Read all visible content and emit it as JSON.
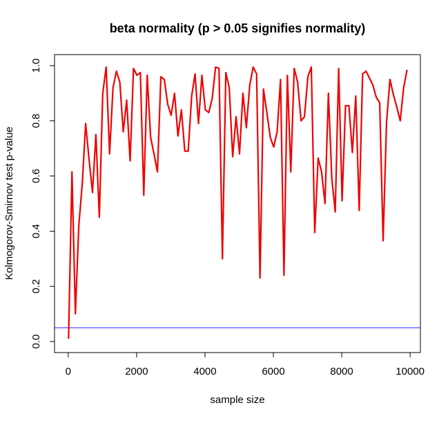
{
  "chart_data": {
    "type": "line",
    "title": "beta normality (p > 0.05 signifies normality)",
    "xlabel": "sample size",
    "ylabel": "Kolmogorov-Smirnov test p-value",
    "xlim": [
      -400,
      10300
    ],
    "ylim": [
      -0.04,
      1.04
    ],
    "xticks": [
      0,
      2000,
      4000,
      6000,
      8000,
      10000
    ],
    "yticks": [
      0.0,
      0.2,
      0.4,
      0.6,
      0.8,
      1.0
    ],
    "xtick_labels": [
      "0",
      "2000",
      "4000",
      "6000",
      "8000",
      "10000"
    ],
    "ytick_labels": [
      "0.0",
      "0.2",
      "0.4",
      "0.6",
      "0.8",
      "1.0"
    ],
    "grid": false,
    "reference_line": {
      "y": 0.05,
      "color": "#6b6bff"
    },
    "series": [
      {
        "color": "#ee0000",
        "x": [
          10,
          110,
          210,
          310,
          410,
          510,
          610,
          710,
          810,
          910,
          1010,
          1110,
          1210,
          1310,
          1410,
          1510,
          1610,
          1710,
          1810,
          1910,
          2010,
          2110,
          2210,
          2310,
          2410,
          2510,
          2610,
          2710,
          2810,
          2910,
          3010,
          3110,
          3210,
          3310,
          3410,
          3510,
          3610,
          3710,
          3810,
          3910,
          4010,
          4110,
          4210,
          4310,
          4410,
          4510,
          4610,
          4710,
          4810,
          4910,
          5010,
          5110,
          5210,
          5310,
          5410,
          5510,
          5610,
          5710,
          5810,
          5910,
          6010,
          6110,
          6210,
          6310,
          6410,
          6510,
          6610,
          6710,
          6810,
          6910,
          7010,
          7110,
          7210,
          7310,
          7410,
          7510,
          7610,
          7710,
          7810,
          7910,
          8010,
          8110,
          8210,
          8310,
          8410,
          8510,
          8610,
          8710,
          8810,
          8910,
          9010,
          9110,
          9210,
          9310,
          9410,
          9510,
          9610,
          9710,
          9810,
          9910
        ],
        "y": [
          0.01,
          0.615,
          0.1,
          0.42,
          0.57,
          0.79,
          0.66,
          0.54,
          0.75,
          0.45,
          0.9,
          0.995,
          0.68,
          0.92,
          0.98,
          0.94,
          0.76,
          0.875,
          0.655,
          0.99,
          0.965,
          0.975,
          0.53,
          0.965,
          0.74,
          0.68,
          0.615,
          0.96,
          0.95,
          0.86,
          0.82,
          0.9,
          0.745,
          0.84,
          0.69,
          0.69,
          0.89,
          0.97,
          0.79,
          0.965,
          0.84,
          0.83,
          0.88,
          0.995,
          0.99,
          0.3,
          0.975,
          0.92,
          0.67,
          0.815,
          0.68,
          0.9,
          0.775,
          0.93,
          0.995,
          0.97,
          0.23,
          0.915,
          0.83,
          0.74,
          0.705,
          0.76,
          0.95,
          0.24,
          0.965,
          0.615,
          0.99,
          0.94,
          0.8,
          0.815,
          0.96,
          0.995,
          0.395,
          0.665,
          0.615,
          0.5,
          0.9,
          0.59,
          0.47,
          0.99,
          0.51,
          0.855,
          0.855,
          0.685,
          0.89,
          0.475,
          0.97,
          0.98,
          0.955,
          0.93,
          0.885,
          0.865,
          0.365,
          0.795,
          0.95,
          0.895,
          0.85,
          0.8,
          0.92,
          0.985
        ]
      }
    ]
  }
}
